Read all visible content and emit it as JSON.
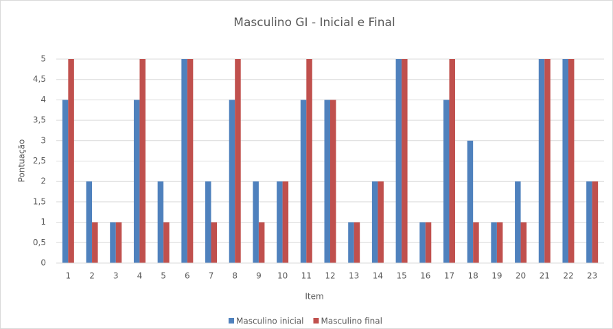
{
  "chart_data": {
    "type": "bar",
    "title": "Masculino GI - Inicial e Final",
    "x_label": "Item",
    "y_label": "Pontuação",
    "categories": [
      "1",
      "2",
      "3",
      "4",
      "5",
      "6",
      "7",
      "8",
      "9",
      "10",
      "11",
      "12",
      "13",
      "14",
      "15",
      "16",
      "17",
      "18",
      "19",
      "20",
      "21",
      "22",
      "23"
    ],
    "series": [
      {
        "name": "Masculino inicial",
        "color": "#4f81bd",
        "values": [
          4,
          2,
          1,
          4,
          2,
          5,
          2,
          4,
          2,
          2,
          4,
          4,
          1,
          2,
          5,
          1,
          4,
          3,
          1,
          2,
          5,
          5,
          2
        ]
      },
      {
        "name": "Masculino final",
        "color": "#c0504d",
        "values": [
          5,
          1,
          1,
          5,
          1,
          5,
          1,
          5,
          1,
          2,
          5,
          4,
          1,
          2,
          5,
          1,
          5,
          1,
          1,
          1,
          5,
          5,
          2
        ]
      }
    ],
    "ylim": [
      0,
      5
    ],
    "yticks": [
      0,
      {
        "value": 0.5,
        "label": "0,5"
      },
      1,
      {
        "value": 1.5,
        "label": "1,5"
      },
      2,
      {
        "value": 2.5,
        "label": "2,5"
      },
      3,
      {
        "value": 3.5,
        "label": "3,5"
      },
      4,
      {
        "value": 4.5,
        "label": "4,5"
      },
      5
    ],
    "grid": true,
    "legend": "bottom"
  }
}
